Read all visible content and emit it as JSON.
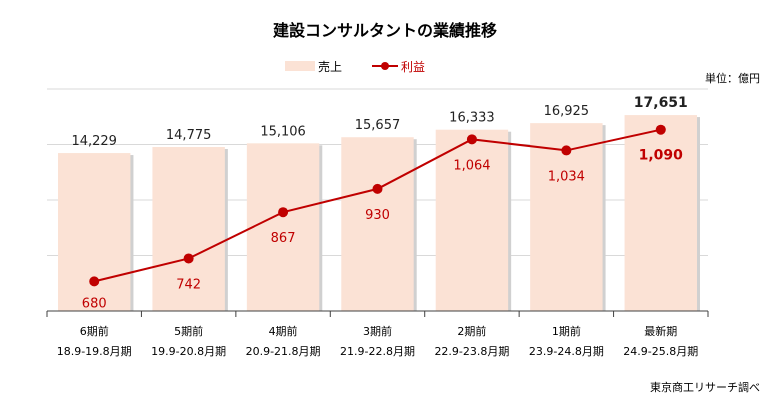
{
  "chart_data": {
    "type": "bar+line",
    "title": "建設コンサルタントの業績推移",
    "unit_label": "単位：億円",
    "source": "東京商工リサーチ調べ",
    "categories": [
      "6期前",
      "5期前",
      "4期前",
      "3期前",
      "2期前",
      "1期前",
      "最新期"
    ],
    "periods": [
      "18.9-19.8月期",
      "19.9-20.8月期",
      "20.9-21.8月期",
      "21.9-22.8月期",
      "22.9-23.8月期",
      "23.9-24.8月期",
      "24.9-25.8月期"
    ],
    "series": [
      {
        "name": "売上",
        "type": "bar",
        "color": "#fbe2d5",
        "axis": "left",
        "values": [
          14229,
          14775,
          15106,
          15657,
          16333,
          16925,
          17651
        ],
        "labels": [
          "14,229",
          "14,775",
          "15,106",
          "15,657",
          "16,333",
          "16,925",
          "17,651"
        ]
      },
      {
        "name": "利益",
        "type": "line",
        "color": "#c00000",
        "axis": "right",
        "values": [
          680,
          742,
          867,
          930,
          1064,
          1034,
          1090
        ],
        "labels": [
          "680",
          "742",
          "867",
          "930",
          "1,064",
          "1,034",
          "1,090"
        ]
      }
    ],
    "left_axis": {
      "range": [
        0,
        20000
      ],
      "gridlines": [
        5000,
        10000,
        15000,
        20000
      ]
    },
    "right_axis": {
      "range": [
        600,
        1200
      ]
    },
    "grid": true,
    "legend_position": "top"
  }
}
